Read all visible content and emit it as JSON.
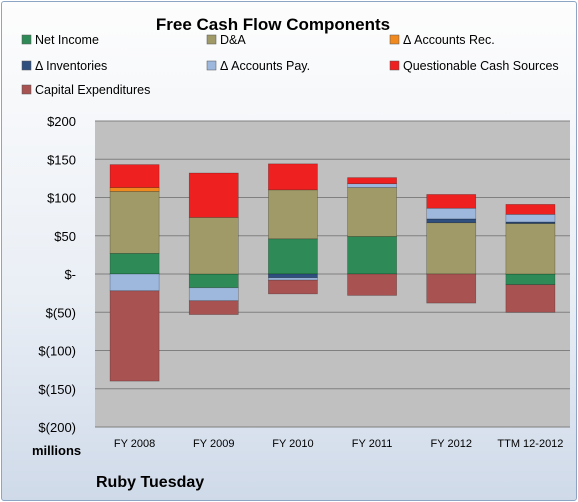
{
  "chart_data": {
    "type": "bar",
    "stacked": true,
    "title": "Free Cash Flow Components",
    "units_label": "millions",
    "company": "Ruby Tuesday",
    "ylim": [
      -200,
      200
    ],
    "yticks": [
      200,
      150,
      100,
      50,
      0,
      -50,
      -100,
      -150,
      -200
    ],
    "ytick_labels": [
      "$200",
      "$150",
      "$100",
      "$50",
      "$-",
      "$(50)",
      "$(100)",
      "$(150)",
      "$(200)"
    ],
    "grid": true,
    "legend_position": "top",
    "categories": [
      "FY 2008",
      "FY 2009",
      "FY 2010",
      "FY 2011",
      "FY 2012",
      "TTM 12-2012"
    ],
    "series": [
      {
        "name": "Net Income",
        "color": "#2e8b57",
        "values": [
          27,
          -18,
          46,
          49,
          0,
          -14
        ]
      },
      {
        "name": "D&A",
        "color": "#a09a68",
        "values": [
          81,
          74,
          64,
          64,
          67,
          66
        ]
      },
      {
        "name": "Δ Accounts Rec.",
        "color": "#f08a1e",
        "values": [
          5,
          0,
          0,
          0,
          0,
          0
        ]
      },
      {
        "name": "Δ Inventories",
        "color": "#2f4f7f",
        "values": [
          0,
          0,
          -5,
          0,
          5,
          2
        ]
      },
      {
        "name": "Δ Accounts Pay.",
        "color": "#9db7dd",
        "values": [
          -22,
          -17,
          -3,
          5,
          14,
          10
        ]
      },
      {
        "name": "Questionable Cash Sources",
        "color": "#ee2020",
        "values": [
          30,
          58,
          34,
          8,
          18,
          13
        ]
      },
      {
        "name": "Capital Expenditures",
        "color": "#a85252",
        "values": [
          -118,
          -18,
          -18,
          -28,
          -38,
          -36
        ]
      }
    ]
  }
}
